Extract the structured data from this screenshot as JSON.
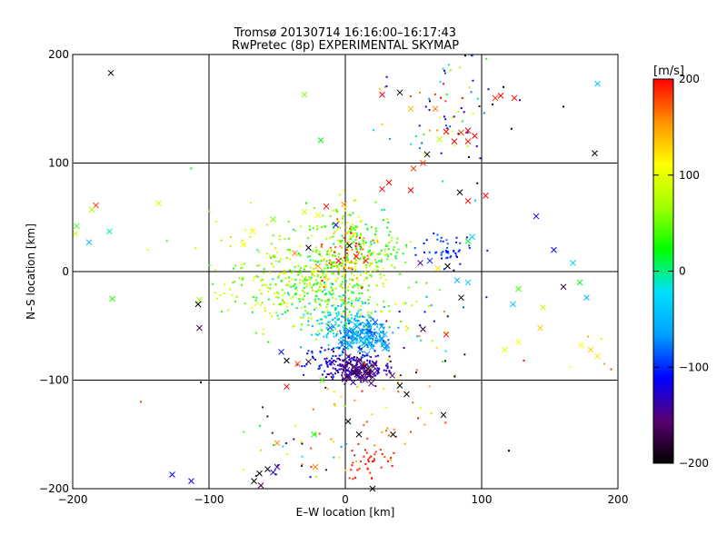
{
  "chart_data": [
    {
      "type": "scatter",
      "title": "Tromsø 20130714 16:16:00–16:17:43",
      "subtitle": "RwPretec (8p) EXPERIMENTAL SKYMAP",
      "xlabel": "E–W location [km]",
      "ylabel": "N–S location [km]",
      "xlim": [
        -200,
        200
      ],
      "ylim": [
        -200,
        200
      ],
      "xticks": [
        -200,
        -100,
        0,
        100,
        200
      ],
      "yticks": [
        -200,
        -100,
        0,
        100,
        200
      ],
      "x_tick_labels": [
        "−200",
        "−100",
        "0",
        "100",
        "200"
      ],
      "y_tick_labels": [
        "−200",
        "−100",
        "0",
        "100",
        "200"
      ],
      "grid": true,
      "marker_types": [
        "dot",
        "cross"
      ],
      "color_by": "velocity",
      "points": [
        {
          "x": -172,
          "y": 183,
          "v": -200,
          "m": "cross"
        },
        {
          "x": -30,
          "y": 163,
          "v": 60,
          "m": "cross"
        },
        {
          "x": -18,
          "y": 121,
          "v": 20,
          "m": "cross"
        },
        {
          "x": -113,
          "y": 95,
          "v": 10,
          "m": "dot"
        },
        {
          "x": -183,
          "y": 61,
          "v": 180,
          "m": "cross"
        },
        {
          "x": -186,
          "y": 57,
          "v": 70,
          "m": "cross"
        },
        {
          "x": -137,
          "y": 63,
          "v": 90,
          "m": "cross"
        },
        {
          "x": -197,
          "y": 42,
          "v": 40,
          "m": "cross"
        },
        {
          "x": -198,
          "y": 35,
          "v": 90,
          "m": "cross"
        },
        {
          "x": -173,
          "y": 37,
          "v": -10,
          "m": "cross"
        },
        {
          "x": -188,
          "y": 27,
          "v": -40,
          "m": "cross"
        },
        {
          "x": -145,
          "y": 20,
          "v": 100,
          "m": "dot"
        },
        {
          "x": -171,
          "y": -25,
          "v": 30,
          "m": "cross"
        },
        {
          "x": -107,
          "y": -26,
          "v": 60,
          "m": "cross"
        },
        {
          "x": -108,
          "y": -30,
          "v": -200,
          "m": "cross"
        },
        {
          "x": -107,
          "y": -52,
          "v": -170,
          "m": "cross"
        },
        {
          "x": -150,
          "y": -120,
          "v": 180,
          "m": "dot"
        },
        {
          "x": -106,
          "y": -102,
          "v": -200,
          "m": "dot"
        },
        {
          "x": -127,
          "y": -187,
          "v": -110,
          "m": "cross"
        },
        {
          "x": -113,
          "y": -193,
          "v": -120,
          "m": "cross"
        },
        {
          "x": 40,
          "y": 165,
          "v": -200,
          "m": "cross"
        },
        {
          "x": 48,
          "y": 150,
          "v": 140,
          "m": "cross"
        },
        {
          "x": 62,
          "y": 157,
          "v": -200,
          "m": "dot"
        },
        {
          "x": 70,
          "y": 160,
          "v": 200,
          "m": "dot"
        },
        {
          "x": 72,
          "y": 173,
          "v": 200,
          "m": "dot"
        },
        {
          "x": 84,
          "y": 188,
          "v": 80,
          "m": "dot"
        },
        {
          "x": 88,
          "y": 199,
          "v": -200,
          "m": "dot"
        },
        {
          "x": 93,
          "y": 199,
          "v": -120,
          "m": "dot"
        },
        {
          "x": 66,
          "y": 150,
          "v": 160,
          "m": "cross"
        },
        {
          "x": 69,
          "y": 122,
          "v": 80,
          "m": "cross"
        },
        {
          "x": 74,
          "y": 129,
          "v": 200,
          "m": "cross"
        },
        {
          "x": 80,
          "y": 120,
          "v": 200,
          "m": "cross"
        },
        {
          "x": 85,
          "y": 128,
          "v": 180,
          "m": "cross"
        },
        {
          "x": 90,
          "y": 130,
          "v": 200,
          "m": "cross"
        },
        {
          "x": 95,
          "y": 125,
          "v": 200,
          "m": "cross"
        },
        {
          "x": 90,
          "y": 120,
          "v": 190,
          "m": "cross"
        },
        {
          "x": 60,
          "y": 108,
          "v": -200,
          "m": "cross"
        },
        {
          "x": 57,
          "y": 100,
          "v": 180,
          "m": "cross"
        },
        {
          "x": 50,
          "y": 95,
          "v": 180,
          "m": "cross"
        },
        {
          "x": 27,
          "y": 163,
          "v": 200,
          "m": "cross"
        },
        {
          "x": 110,
          "y": 160,
          "v": 190,
          "m": "cross"
        },
        {
          "x": 114,
          "y": 162,
          "v": 200,
          "m": "cross"
        },
        {
          "x": 124,
          "y": 160,
          "v": 200,
          "m": "cross"
        },
        {
          "x": 108,
          "y": 154,
          "v": -200,
          "m": "dot"
        },
        {
          "x": 105,
          "y": 168,
          "v": -120,
          "m": "dot"
        },
        {
          "x": 116,
          "y": 170,
          "v": -200,
          "m": "dot"
        },
        {
          "x": 128,
          "y": 158,
          "v": -150,
          "m": "dot"
        },
        {
          "x": 160,
          "y": 152,
          "v": -200,
          "m": "dot"
        },
        {
          "x": 185,
          "y": 173,
          "v": -40,
          "m": "cross"
        },
        {
          "x": 183,
          "y": 109,
          "v": -200,
          "m": "cross"
        },
        {
          "x": 27,
          "y": 76,
          "v": 200,
          "m": "cross"
        },
        {
          "x": 32,
          "y": 82,
          "v": 200,
          "m": "cross"
        },
        {
          "x": 48,
          "y": 75,
          "v": 200,
          "m": "cross"
        },
        {
          "x": 84,
          "y": 73,
          "v": -200,
          "m": "cross"
        },
        {
          "x": 90,
          "y": 65,
          "v": 200,
          "m": "cross"
        },
        {
          "x": 103,
          "y": 70,
          "v": 200,
          "m": "cross"
        },
        {
          "x": -20,
          "y": 52,
          "v": 110,
          "m": "cross"
        },
        {
          "x": -30,
          "y": 55,
          "v": 90,
          "m": "cross"
        },
        {
          "x": -14,
          "y": 60,
          "v": 200,
          "m": "cross"
        },
        {
          "x": -1,
          "y": 62,
          "v": 150,
          "m": "cross"
        },
        {
          "x": -53,
          "y": 48,
          "v": 60,
          "m": "cross"
        },
        {
          "x": -68,
          "y": 37,
          "v": 110,
          "m": "cross"
        },
        {
          "x": -75,
          "y": 25,
          "v": 110,
          "m": "cross"
        },
        {
          "x": -37,
          "y": 17,
          "v": 160,
          "m": "cross"
        },
        {
          "x": -27,
          "y": 22,
          "v": -200,
          "m": "cross"
        },
        {
          "x": -7,
          "y": 43,
          "v": -120,
          "m": "cross"
        },
        {
          "x": 6,
          "y": 40,
          "v": 50,
          "m": "cross"
        },
        {
          "x": 3,
          "y": 24,
          "v": -200,
          "m": "cross"
        },
        {
          "x": 8,
          "y": 14,
          "v": 200,
          "m": "cross"
        },
        {
          "x": -5,
          "y": 10,
          "v": 200,
          "m": "cross"
        },
        {
          "x": 15,
          "y": 10,
          "v": 200,
          "m": "cross"
        },
        {
          "x": -20,
          "y": 5,
          "v": 150,
          "m": "cross"
        },
        {
          "x": 55,
          "y": 8,
          "v": -140,
          "m": "cross"
        },
        {
          "x": 62,
          "y": 10,
          "v": -100,
          "m": "cross"
        },
        {
          "x": 75,
          "y": 5,
          "v": -200,
          "m": "cross"
        },
        {
          "x": 68,
          "y": 3,
          "v": 120,
          "m": "cross"
        },
        {
          "x": 82,
          "y": -8,
          "v": -60,
          "m": "cross"
        },
        {
          "x": 90,
          "y": 28,
          "v": 10,
          "m": "cross"
        },
        {
          "x": 93,
          "y": 32,
          "v": -40,
          "m": "cross"
        },
        {
          "x": 90,
          "y": -10,
          "v": -30,
          "m": "cross"
        },
        {
          "x": 85,
          "y": -24,
          "v": -200,
          "m": "cross"
        },
        {
          "x": 57,
          "y": -53,
          "v": -180,
          "m": "cross"
        },
        {
          "x": 74,
          "y": -58,
          "v": 200,
          "m": "cross"
        },
        {
          "x": 140,
          "y": 51,
          "v": -120,
          "m": "cross"
        },
        {
          "x": 153,
          "y": 20,
          "v": -110,
          "m": "cross"
        },
        {
          "x": 167,
          "y": 8,
          "v": -40,
          "m": "cross"
        },
        {
          "x": 172,
          "y": -10,
          "v": 20,
          "m": "cross"
        },
        {
          "x": 160,
          "y": -14,
          "v": -180,
          "m": "cross"
        },
        {
          "x": 177,
          "y": -24,
          "v": -60,
          "m": "cross"
        },
        {
          "x": 127,
          "y": -16,
          "v": 40,
          "m": "cross"
        },
        {
          "x": 123,
          "y": -30,
          "v": -40,
          "m": "cross"
        },
        {
          "x": 145,
          "y": -33,
          "v": 80,
          "m": "cross"
        },
        {
          "x": 143,
          "y": -52,
          "v": 130,
          "m": "cross"
        },
        {
          "x": 127,
          "y": -65,
          "v": 110,
          "m": "cross"
        },
        {
          "x": 117,
          "y": -72,
          "v": 100,
          "m": "cross"
        },
        {
          "x": 173,
          "y": -68,
          "v": 110,
          "m": "cross"
        },
        {
          "x": 180,
          "y": -72,
          "v": 130,
          "m": "cross"
        },
        {
          "x": 185,
          "y": -78,
          "v": 120,
          "m": "cross"
        },
        {
          "x": 190,
          "y": -85,
          "v": 150,
          "m": "dot"
        },
        {
          "x": 195,
          "y": -90,
          "v": 180,
          "m": "dot"
        },
        {
          "x": 178,
          "y": -60,
          "v": 140,
          "m": "dot"
        },
        {
          "x": 188,
          "y": -62,
          "v": 120,
          "m": "dot"
        },
        {
          "x": 165,
          "y": -88,
          "v": 110,
          "m": "dot"
        },
        {
          "x": -27,
          "y": -83,
          "v": -180,
          "m": "cross"
        },
        {
          "x": -35,
          "y": -85,
          "v": 180,
          "m": "cross"
        },
        {
          "x": -43,
          "y": -82,
          "v": -200,
          "m": "cross"
        },
        {
          "x": -47,
          "y": -74,
          "v": -110,
          "m": "cross"
        },
        {
          "x": -17,
          "y": -100,
          "v": 40,
          "m": "cross"
        },
        {
          "x": -43,
          "y": -106,
          "v": 200,
          "m": "cross"
        },
        {
          "x": 40,
          "y": -105,
          "v": -200,
          "m": "cross"
        },
        {
          "x": 45,
          "y": -113,
          "v": -200,
          "m": "cross"
        },
        {
          "x": 2,
          "y": -138,
          "v": -200,
          "m": "cross"
        },
        {
          "x": 72,
          "y": -132,
          "v": -200,
          "m": "cross"
        },
        {
          "x": 10,
          "y": -150,
          "v": -200,
          "m": "cross"
        },
        {
          "x": 35,
          "y": -150,
          "v": -200,
          "m": "cross"
        },
        {
          "x": -50,
          "y": -158,
          "v": 160,
          "m": "cross"
        },
        {
          "x": -22,
          "y": -180,
          "v": 160,
          "m": "cross"
        },
        {
          "x": -23,
          "y": -150,
          "v": 30,
          "m": "cross"
        },
        {
          "x": -57,
          "y": -182,
          "v": -200,
          "m": "cross"
        },
        {
          "x": -63,
          "y": -186,
          "v": -200,
          "m": "cross"
        },
        {
          "x": -67,
          "y": -193,
          "v": -200,
          "m": "cross"
        },
        {
          "x": -62,
          "y": -197,
          "v": -160,
          "m": "cross"
        },
        {
          "x": -53,
          "y": -185,
          "v": -120,
          "m": "cross"
        },
        {
          "x": -50,
          "y": -180,
          "v": -140,
          "m": "cross"
        },
        {
          "x": -25,
          "y": -180,
          "v": 190,
          "m": "dot"
        },
        {
          "x": 20,
          "y": -175,
          "v": 200,
          "m": "dot"
        },
        {
          "x": 5,
          "y": -165,
          "v": 200,
          "m": "dot"
        },
        {
          "x": 120,
          "y": -165,
          "v": -200,
          "m": "dot"
        },
        {
          "x": 20,
          "y": -200,
          "v": -200,
          "m": "cross"
        }
      ],
      "clusters": [
        {
          "cx": -5,
          "cy": 0,
          "sx": 22,
          "sy": 22,
          "n": 260,
          "vmin": 20,
          "vmax": 110,
          "m": "dot"
        },
        {
          "cx": -20,
          "cy": -20,
          "sx": 30,
          "sy": 22,
          "n": 170,
          "vmin": -20,
          "vmax": 100,
          "m": "dot"
        },
        {
          "cx": 0,
          "cy": 15,
          "sx": 10,
          "sy": 14,
          "n": 70,
          "vmin": 120,
          "vmax": 200,
          "m": "dot"
        },
        {
          "cx": -50,
          "cy": -15,
          "sx": 25,
          "sy": 15,
          "n": 110,
          "vmin": 30,
          "vmax": 110,
          "m": "dot"
        },
        {
          "cx": -5,
          "cy": -45,
          "sx": 14,
          "sy": 14,
          "n": 110,
          "vmin": -60,
          "vmax": 10,
          "m": "dot"
        },
        {
          "cx": 12,
          "cy": -57,
          "sx": 9,
          "sy": 9,
          "n": 160,
          "vmin": -90,
          "vmax": -40,
          "m": "dot"
        },
        {
          "cx": 12,
          "cy": -60,
          "sx": 9,
          "sy": 8,
          "n": 40,
          "vmin": -90,
          "vmax": -40,
          "m": "cross"
        },
        {
          "cx": 5,
          "cy": -88,
          "sx": 14,
          "sy": 7,
          "n": 150,
          "vmin": -170,
          "vmax": -110,
          "m": "dot"
        },
        {
          "cx": 12,
          "cy": -93,
          "sx": 8,
          "sy": 6,
          "n": 45,
          "vmin": -180,
          "vmax": -130,
          "m": "cross"
        },
        {
          "cx": -10,
          "cy": -80,
          "sx": 10,
          "sy": 8,
          "n": 40,
          "vmin": -130,
          "vmax": -90,
          "m": "dot"
        },
        {
          "cx": 75,
          "cy": 20,
          "sx": 10,
          "sy": 8,
          "n": 45,
          "vmin": -120,
          "vmax": -80,
          "m": "dot"
        },
        {
          "cx": 5,
          "cy": 45,
          "sx": 12,
          "sy": 12,
          "n": 60,
          "vmin": 0,
          "vmax": 120,
          "m": "dot"
        },
        {
          "cx": 20,
          "cy": 22,
          "sx": 15,
          "sy": 10,
          "n": 60,
          "vmin": 0,
          "vmax": 80,
          "m": "dot"
        },
        {
          "cx": 75,
          "cy": 140,
          "sx": 22,
          "sy": 30,
          "n": 70,
          "vmin": -200,
          "vmax": 200,
          "m": "dot"
        },
        {
          "cx": 20,
          "cy": -130,
          "sx": 25,
          "sy": 25,
          "n": 45,
          "vmin": 100,
          "vmax": 200,
          "m": "dot"
        },
        {
          "cx": 20,
          "cy": -178,
          "sx": 9,
          "sy": 9,
          "n": 35,
          "vmin": 180,
          "vmax": 200,
          "m": "dot"
        },
        {
          "cx": -35,
          "cy": -170,
          "sx": 20,
          "sy": 20,
          "n": 30,
          "vmin": -200,
          "vmax": 200,
          "m": "dot"
        },
        {
          "cx": 50,
          "cy": -60,
          "sx": 30,
          "sy": 30,
          "n": 40,
          "vmin": -200,
          "vmax": 200,
          "m": "dot"
        },
        {
          "cx": -60,
          "cy": 20,
          "sx": 30,
          "sy": 20,
          "n": 40,
          "vmin": 40,
          "vmax": 140,
          "m": "dot"
        }
      ]
    },
    {
      "type": "heatmap",
      "title": "[m/s]",
      "ylim": [
        -200,
        200
      ],
      "yticks": [
        -200,
        -100,
        0,
        100,
        200
      ],
      "tick_labels": [
        "−200",
        "−100",
        "0",
        "100",
        "200"
      ],
      "colormap": [
        "#000000",
        "#5a0070",
        "#0000ff",
        "#00a0ff",
        "#00e0ff",
        "#00ff00",
        "#a0ff00",
        "#ffff00",
        "#ff9000",
        "#ff0000"
      ]
    }
  ]
}
